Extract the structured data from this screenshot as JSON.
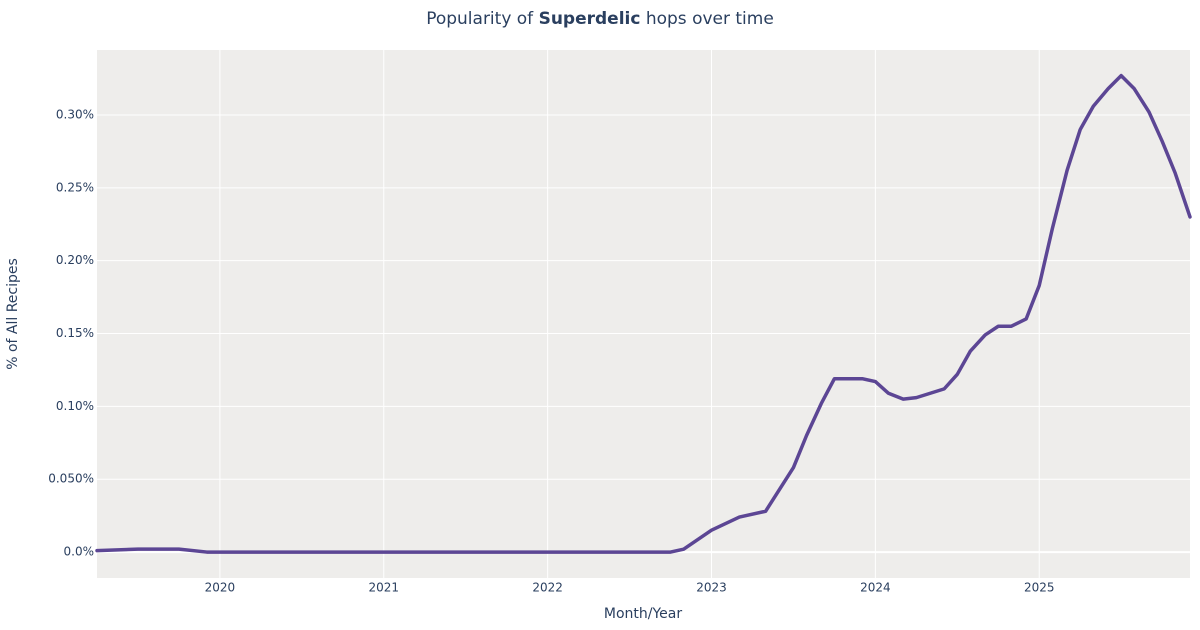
{
  "chart_data": {
    "type": "line",
    "title": [
      "Popularity of ",
      "Superdelic",
      " hops over time"
    ],
    "x_label": "Month/Year",
    "y_label": "% of All Recipes",
    "x": [
      2019.25,
      2019.5,
      2019.75,
      2019.92,
      2020.5,
      2021.0,
      2021.5,
      2022.0,
      2022.5,
      2022.75,
      2022.83,
      2023.0,
      2023.17,
      2023.33,
      2023.5,
      2023.58,
      2023.67,
      2023.75,
      2023.92,
      2024.0,
      2024.08,
      2024.17,
      2024.25,
      2024.42,
      2024.5,
      2024.58,
      2024.67,
      2024.75,
      2024.83,
      2024.92,
      2025.0,
      2025.08,
      2025.17,
      2025.25,
      2025.33,
      2025.42,
      2025.5,
      2025.58,
      2025.67,
      2025.75,
      2025.83,
      2025.92
    ],
    "series": [
      {
        "name": "Superdelic",
        "color": "#5c4694",
        "values": [
          0.001,
          0.002,
          0.002,
          0,
          0,
          0,
          0,
          0,
          0,
          0,
          0.002,
          0.015,
          0.024,
          0.028,
          0.058,
          0.08,
          0.102,
          0.119,
          0.119,
          0.117,
          0.109,
          0.105,
          0.106,
          0.112,
          0.122,
          0.138,
          0.149,
          0.155,
          0.155,
          0.16,
          0.183,
          0.222,
          0.262,
          0.29,
          0.306,
          0.318,
          0.327,
          0.318,
          0.302,
          0.282,
          0.26,
          0.23
        ]
      }
    ],
    "xlim": [
      2019.25,
      2025.92
    ],
    "xticks": [
      2020,
      2021,
      2022,
      2023,
      2024,
      2025
    ],
    "ylim": [
      -0.0178,
      0.3446
    ],
    "yticks": [
      {
        "value": 0,
        "label": "0.0%"
      },
      {
        "value": 0.05,
        "label": "0.050%"
      },
      {
        "value": 0.1,
        "label": "0.10%"
      },
      {
        "value": 0.15,
        "label": "0.15%"
      },
      {
        "value": 0.2,
        "label": "0.20%"
      },
      {
        "value": 0.25,
        "label": "0.25%"
      },
      {
        "value": 0.3,
        "label": "0.30%"
      }
    ],
    "grid": true
  }
}
